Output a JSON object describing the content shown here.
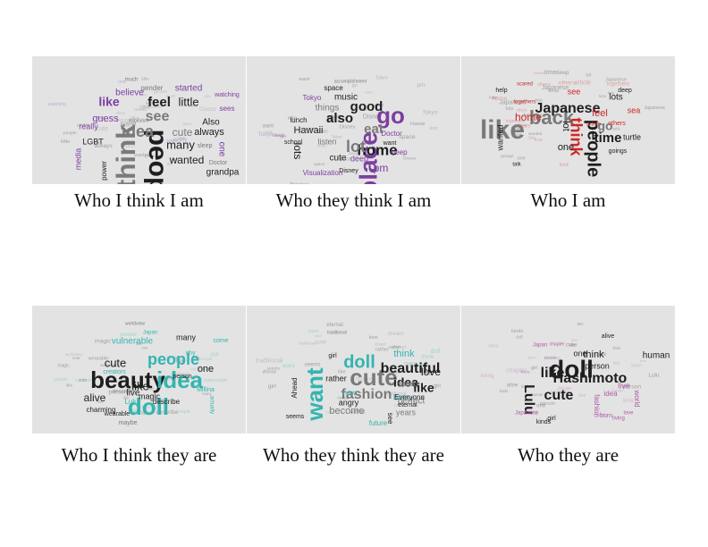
{
  "colors": {
    "panel_bg": "#e3e3e3",
    "dark": "#1e1e1e",
    "gray": "#7a7a7a",
    "purple": "#7b3fa0",
    "red": "#cc2828",
    "teal": "#33b5b0",
    "magenta": "#b05aa8"
  },
  "panels": [
    {
      "caption": "Who I think I am",
      "words": [
        {
          "t": "people",
          "c": "dark",
          "s": 30,
          "r": 90
        },
        {
          "t": "think",
          "c": "gray",
          "s": 30,
          "r": -90
        },
        {
          "t": "idea",
          "c": "gray",
          "s": 18,
          "r": 0
        },
        {
          "t": "see",
          "c": "gray",
          "s": 16,
          "r": 0
        },
        {
          "t": "feel",
          "c": "dark",
          "s": 15,
          "r": 0
        },
        {
          "t": "like",
          "c": "purple",
          "s": 14,
          "r": 0
        },
        {
          "t": "little",
          "c": "dark",
          "s": 13,
          "r": 0
        },
        {
          "t": "many",
          "c": "dark",
          "s": 13,
          "r": 0
        },
        {
          "t": "wanted",
          "c": "dark",
          "s": 12,
          "r": 0
        },
        {
          "t": "cute",
          "c": "gray",
          "s": 12,
          "r": 0
        },
        {
          "t": "guess",
          "c": "purple",
          "s": 11,
          "r": 0
        },
        {
          "t": "always",
          "c": "dark",
          "s": 11,
          "r": 0
        },
        {
          "t": "believe",
          "c": "purple",
          "s": 10,
          "r": 0
        },
        {
          "t": "started",
          "c": "purple",
          "s": 10,
          "r": 0
        },
        {
          "t": "really",
          "c": "purple",
          "s": 9,
          "r": 0
        },
        {
          "t": "LGBT",
          "c": "dark",
          "s": 9,
          "r": 0
        },
        {
          "t": "media",
          "c": "purple",
          "s": 9,
          "r": -90
        },
        {
          "t": "Also",
          "c": "dark",
          "s": 10,
          "r": 0
        },
        {
          "t": "one",
          "c": "purple",
          "s": 10,
          "r": 90
        },
        {
          "t": "grandpa",
          "c": "dark",
          "s": 10,
          "r": 0
        },
        {
          "t": "gender",
          "c": "gray",
          "s": 8,
          "r": 0
        },
        {
          "t": "power",
          "c": "dark",
          "s": 8,
          "r": -90
        },
        {
          "t": "sees",
          "c": "purple",
          "s": 8,
          "r": 0
        },
        {
          "t": "sleep",
          "c": "gray",
          "s": 7,
          "r": 0
        },
        {
          "t": "watching",
          "c": "purple",
          "s": 7,
          "r": 0
        },
        {
          "t": "Doctor",
          "c": "gray",
          "s": 7,
          "r": 0
        },
        {
          "t": "much",
          "c": "gray",
          "s": 6,
          "r": 0
        },
        {
          "t": "inspiration",
          "c": "gray",
          "s": 5,
          "r": 0
        }
      ]
    },
    {
      "caption": "Who they think I am",
      "words": [
        {
          "t": "place",
          "c": "purple",
          "s": 28,
          "r": -90
        },
        {
          "t": "go",
          "c": "purple",
          "s": 26,
          "r": 0
        },
        {
          "t": "home",
          "c": "dark",
          "s": 17,
          "r": 0
        },
        {
          "t": "good",
          "c": "dark",
          "s": 15,
          "r": 0
        },
        {
          "t": "lot",
          "c": "gray",
          "s": 18,
          "r": 0
        },
        {
          "t": "also",
          "c": "dark",
          "s": 15,
          "r": 0
        },
        {
          "t": "eat",
          "c": "gray",
          "s": 15,
          "r": 0
        },
        {
          "t": "Hawaii",
          "c": "dark",
          "s": 11,
          "r": 0
        },
        {
          "t": "lots",
          "c": "dark",
          "s": 12,
          "r": 90
        },
        {
          "t": "pm",
          "c": "purple",
          "s": 12,
          "r": 0
        },
        {
          "t": "cute",
          "c": "dark",
          "s": 10,
          "r": 0
        },
        {
          "t": "music",
          "c": "dark",
          "s": 10,
          "r": 0
        },
        {
          "t": "things",
          "c": "gray",
          "s": 10,
          "r": 0
        },
        {
          "t": "listen",
          "c": "gray",
          "s": 9,
          "r": 0
        },
        {
          "t": "deep",
          "c": "purple",
          "s": 9,
          "r": 0
        },
        {
          "t": "Tokyo",
          "c": "purple",
          "s": 8,
          "r": 0
        },
        {
          "t": "lunch",
          "c": "dark",
          "s": 8,
          "r": 0
        },
        {
          "t": "space",
          "c": "dark",
          "s": 8,
          "r": 0
        },
        {
          "t": "Doctor",
          "c": "purple",
          "s": 8,
          "r": 0
        },
        {
          "t": "Disney",
          "c": "dark",
          "s": 7,
          "r": 0
        },
        {
          "t": "school",
          "c": "dark",
          "s": 7,
          "r": 0
        },
        {
          "t": "sleep",
          "c": "purple",
          "s": 8,
          "r": 0
        },
        {
          "t": "Visualization",
          "c": "purple",
          "s": 8,
          "r": 0
        },
        {
          "t": "want",
          "c": "dark",
          "s": 7,
          "r": 0
        },
        {
          "t": "Pokemon",
          "c": "gray",
          "s": 5,
          "r": 0
        },
        {
          "t": "accomplishment",
          "c": "gray",
          "s": 5,
          "r": 0
        }
      ]
    },
    {
      "caption": "Who I am",
      "words": [
        {
          "t": "like",
          "c": "gray",
          "s": 30,
          "r": 0
        },
        {
          "t": "back",
          "c": "gray",
          "s": 22,
          "r": 0
        },
        {
          "t": "people",
          "c": "dark",
          "s": 20,
          "r": 90
        },
        {
          "t": "Japanese",
          "c": "dark",
          "s": 16,
          "r": 0
        },
        {
          "t": "think",
          "c": "red",
          "s": 18,
          "r": 90
        },
        {
          "t": "time",
          "c": "dark",
          "s": 15,
          "r": 0
        },
        {
          "t": "home",
          "c": "red",
          "s": 12,
          "r": 0
        },
        {
          "t": "go",
          "c": "gray",
          "s": 14,
          "r": 0
        },
        {
          "t": "lot",
          "c": "dark",
          "s": 11,
          "r": 90
        },
        {
          "t": "feel",
          "c": "red",
          "s": 11,
          "r": 0
        },
        {
          "t": "one",
          "c": "dark",
          "s": 11,
          "r": 0
        },
        {
          "t": "lots",
          "c": "dark",
          "s": 10,
          "r": 0
        },
        {
          "t": "see",
          "c": "red",
          "s": 9,
          "r": 0
        },
        {
          "t": "sea",
          "c": "red",
          "s": 9,
          "r": 0
        },
        {
          "t": "wanted",
          "c": "dark",
          "s": 9,
          "r": -90
        },
        {
          "t": "turtle",
          "c": "dark",
          "s": 9,
          "r": 0
        },
        {
          "t": "goings",
          "c": "dark",
          "s": 7,
          "r": 0
        },
        {
          "t": "others",
          "c": "red",
          "s": 7,
          "r": 0
        },
        {
          "t": "togethers",
          "c": "red",
          "s": 6,
          "r": 0
        },
        {
          "t": "help",
          "c": "dark",
          "s": 7,
          "r": 0
        },
        {
          "t": "deep",
          "c": "dark",
          "s": 7,
          "r": 0
        },
        {
          "t": "talk",
          "c": "dark",
          "s": 6,
          "r": 0
        },
        {
          "t": "article",
          "c": "red",
          "s": 6,
          "r": 0
        },
        {
          "t": "scared",
          "c": "red",
          "s": 6,
          "r": 0
        }
      ]
    },
    {
      "caption": "Who I think they are",
      "words": [
        {
          "t": "beauty",
          "c": "dark",
          "s": 26,
          "r": 0
        },
        {
          "t": "idea",
          "c": "teal",
          "s": 26,
          "r": 0
        },
        {
          "t": "doll",
          "c": "teal",
          "s": 26,
          "r": 0
        },
        {
          "t": "people",
          "c": "teal",
          "s": 18,
          "r": 0
        },
        {
          "t": "cute",
          "c": "dark",
          "s": 13,
          "r": 0
        },
        {
          "t": "like",
          "c": "dark",
          "s": 13,
          "r": 0
        },
        {
          "t": "alive",
          "c": "dark",
          "s": 12,
          "r": 0
        },
        {
          "t": "one",
          "c": "dark",
          "s": 11,
          "r": 0
        },
        {
          "t": "live",
          "c": "dark",
          "s": 10,
          "r": 0
        },
        {
          "t": "vulnerable",
          "c": "teal",
          "s": 10,
          "r": 0
        },
        {
          "t": "many",
          "c": "dark",
          "s": 9,
          "r": 0
        },
        {
          "t": "magic",
          "c": "dark",
          "s": 9,
          "r": 0
        },
        {
          "t": "describe",
          "c": "dark",
          "s": 8,
          "r": 0
        },
        {
          "t": "Lulu",
          "c": "teal",
          "s": 8,
          "r": 0
        },
        {
          "t": "charming",
          "c": "dark",
          "s": 8,
          "r": 0
        },
        {
          "t": "wearable",
          "c": "dark",
          "s": 7,
          "r": 0
        },
        {
          "t": "maybe",
          "c": "gray",
          "s": 7,
          "r": 0
        },
        {
          "t": "Millina",
          "c": "teal",
          "s": 7,
          "r": 0
        },
        {
          "t": "person",
          "c": "dark",
          "s": 7,
          "r": 0
        },
        {
          "t": "creators",
          "c": "teal",
          "s": 7,
          "r": 0
        },
        {
          "t": "shy",
          "c": "teal",
          "s": 7,
          "r": 0
        },
        {
          "t": "come",
          "c": "teal",
          "s": 7,
          "r": 0
        },
        {
          "t": "Japan",
          "c": "teal",
          "s": 6,
          "r": 0
        },
        {
          "t": "actually",
          "c": "teal",
          "s": 6,
          "r": 90
        },
        {
          "t": "worldview",
          "c": "gray",
          "s": 5,
          "r": 0
        }
      ]
    },
    {
      "caption": "Who they think they are",
      "words": [
        {
          "t": "want",
          "c": "teal",
          "s": 26,
          "r": -90
        },
        {
          "t": "cute",
          "c": "gray",
          "s": 26,
          "r": 0
        },
        {
          "t": "doll",
          "c": "teal",
          "s": 20,
          "r": 0
        },
        {
          "t": "beautiful",
          "c": "dark",
          "s": 16,
          "r": 0
        },
        {
          "t": "fashion",
          "c": "gray",
          "s": 16,
          "r": 0
        },
        {
          "t": "idea",
          "c": "dark",
          "s": 14,
          "r": 0
        },
        {
          "t": "like",
          "c": "dark",
          "s": 14,
          "r": 0
        },
        {
          "t": "love",
          "c": "dark",
          "s": 12,
          "r": 0
        },
        {
          "t": "become",
          "c": "gray",
          "s": 11,
          "r": 0
        },
        {
          "t": "think",
          "c": "teal",
          "s": 11,
          "r": 0
        },
        {
          "t": "perfect",
          "c": "gray",
          "s": 10,
          "r": 0
        },
        {
          "t": "born",
          "c": "teal",
          "s": 9,
          "r": 0
        },
        {
          "t": "angry",
          "c": "dark",
          "s": 9,
          "r": 0
        },
        {
          "t": "rather",
          "c": "dark",
          "s": 9,
          "r": 0
        },
        {
          "t": "years",
          "c": "gray",
          "s": 9,
          "r": 0
        },
        {
          "t": "future",
          "c": "teal",
          "s": 8,
          "r": 0
        },
        {
          "t": "pretty",
          "c": "gray",
          "s": 8,
          "r": 0
        },
        {
          "t": "Everyone",
          "c": "dark",
          "s": 8,
          "r": 0
        },
        {
          "t": "eternal",
          "c": "dark",
          "s": 7,
          "r": 0
        },
        {
          "t": "dream",
          "c": "gray",
          "s": 7,
          "r": 0
        },
        {
          "t": "seems",
          "c": "dark",
          "s": 7,
          "r": 0
        },
        {
          "t": "see",
          "c": "dark",
          "s": 8,
          "r": 90
        },
        {
          "t": "Ahead",
          "c": "dark",
          "s": 8,
          "r": -90
        },
        {
          "t": "now",
          "c": "teal",
          "s": 8,
          "r": 0
        },
        {
          "t": "girl",
          "c": "dark",
          "s": 7,
          "r": 0
        },
        {
          "t": "traditional",
          "c": "gray",
          "s": 5,
          "r": 0
        }
      ]
    },
    {
      "caption": "Who they are",
      "words": [
        {
          "t": "doll",
          "c": "dark",
          "s": 28,
          "r": 0
        },
        {
          "t": "Hashimoto",
          "c": "dark",
          "s": 16,
          "r": 0
        },
        {
          "t": "cute",
          "c": "dark",
          "s": 16,
          "r": 0
        },
        {
          "t": "like",
          "c": "dark",
          "s": 16,
          "r": 0
        },
        {
          "t": "Lulu",
          "c": "dark",
          "s": 16,
          "r": 90
        },
        {
          "t": "think",
          "c": "dark",
          "s": 11,
          "r": 0
        },
        {
          "t": "human",
          "c": "dark",
          "s": 10,
          "r": 0
        },
        {
          "t": "person",
          "c": "dark",
          "s": 9,
          "r": 0
        },
        {
          "t": "live",
          "c": "magenta",
          "s": 9,
          "r": 0
        },
        {
          "t": "one",
          "c": "dark",
          "s": 9,
          "r": 0
        },
        {
          "t": "fashion",
          "c": "magenta",
          "s": 8,
          "r": 90
        },
        {
          "t": "idea",
          "c": "magenta",
          "s": 8,
          "r": 0
        },
        {
          "t": "world",
          "c": "magenta",
          "s": 8,
          "r": 90
        },
        {
          "t": "alive",
          "c": "dark",
          "s": 7,
          "r": 0
        },
        {
          "t": "born",
          "c": "magenta",
          "s": 7,
          "r": 0
        },
        {
          "t": "girl",
          "c": "dark",
          "s": 7,
          "r": 0
        },
        {
          "t": "kinds",
          "c": "dark",
          "s": 7,
          "r": 0
        },
        {
          "t": "Japanese",
          "c": "magenta",
          "s": 6,
          "r": 0
        },
        {
          "t": "living",
          "c": "magenta",
          "s": 6,
          "r": 0
        },
        {
          "t": "Japan",
          "c": "magenta",
          "s": 6,
          "r": 0
        },
        {
          "t": "love",
          "c": "magenta",
          "s": 6,
          "r": 0
        },
        {
          "t": "chapter",
          "c": "magenta",
          "s": 5,
          "r": 0
        }
      ]
    }
  ]
}
